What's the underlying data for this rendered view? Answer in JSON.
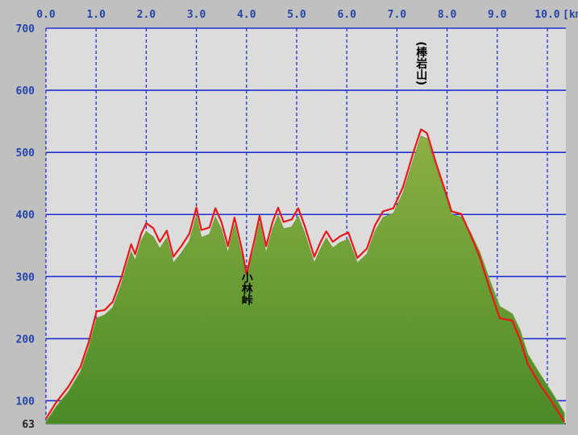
{
  "chart_data": {
    "type": "area",
    "x_unit": "[km",
    "x": [
      0,
      0.2,
      0.45,
      0.69,
      0.85,
      1.01,
      1.17,
      1.33,
      1.5,
      1.62,
      1.7,
      1.78,
      1.9,
      2.0,
      2.14,
      2.27,
      2.41,
      2.54,
      2.7,
      2.86,
      3.0,
      3.1,
      3.26,
      3.38,
      3.5,
      3.63,
      3.76,
      3.91,
      4.0,
      4.15,
      4.26,
      4.39,
      4.52,
      4.63,
      4.74,
      4.9,
      5.03,
      5.16,
      5.35,
      5.48,
      5.59,
      5.72,
      5.87,
      6.03,
      6.21,
      6.4,
      6.56,
      6.72,
      6.93,
      7.12,
      7.32,
      7.48,
      7.6,
      7.77,
      7.93,
      8.09,
      8.28,
      8.46,
      8.65,
      8.86,
      9.05,
      9.3,
      9.45,
      9.61,
      9.86,
      10.1,
      10.34
    ],
    "series": [
      {
        "color": "#6e9e34",
        "fill": true,
        "values": [
          66,
          90,
          115,
          147,
          185,
          233,
          238,
          250,
          287,
          320,
          340,
          326,
          358,
          372,
          364,
          345,
          362,
          322,
          338,
          357,
          398,
          363,
          368,
          396,
          376,
          338,
          383,
          332,
          300,
          344,
          386,
          338,
          376,
          398,
          377,
          380,
          397,
          370,
          322,
          345,
          362,
          346,
          355,
          360,
          322,
          336,
          372,
          395,
          402,
          434,
          486,
          526,
          522,
          478,
          440,
          400,
          396,
          372,
          340,
          292,
          252,
          240,
          215,
          175,
          142,
          112,
          80
        ]
      },
      {
        "color": "#e81818",
        "fill": false,
        "values": [
          71,
          97,
          123,
          155,
          194,
          244,
          246,
          259,
          297,
          330,
          352,
          336,
          369,
          386,
          378,
          356,
          374,
          332,
          349,
          369,
          411,
          375,
          379,
          410,
          388,
          349,
          395,
          343,
          304,
          356,
          398,
          349,
          388,
          411,
          388,
          392,
          410,
          382,
          332,
          356,
          373,
          356,
          365,
          371,
          330,
          345,
          382,
          405,
          410,
          444,
          498,
          537,
          531,
          485,
          446,
          405,
          401,
          369,
          332,
          278,
          233,
          229,
          200,
          159,
          125,
          97,
          66
        ]
      }
    ],
    "xlim": [
      0,
      10.37
    ],
    "ylim": [
      63,
      700
    ],
    "xticks": [
      {
        "value": 0,
        "label": "0.0"
      },
      {
        "value": 1,
        "label": "1.0"
      },
      {
        "value": 2,
        "label": "2.0"
      },
      {
        "value": 3,
        "label": "3.0"
      },
      {
        "value": 4,
        "label": "4.0"
      },
      {
        "value": 5,
        "label": "5.0"
      },
      {
        "value": 6,
        "label": "6.0"
      },
      {
        "value": 7,
        "label": "7.0"
      },
      {
        "value": 8,
        "label": "8.0"
      },
      {
        "value": 9,
        "label": "9.0"
      },
      {
        "value": 10,
        "label": "10.0"
      }
    ],
    "yticks": [
      63,
      100,
      200,
      300,
      400,
      500,
      600,
      700
    ],
    "grid": true,
    "annotations": [
      {
        "text": "小林峠",
        "x": 4.0,
        "y": 304
      },
      {
        "text": "(棒岩山)",
        "x": 7.48,
        "y": 537
      }
    ]
  }
}
